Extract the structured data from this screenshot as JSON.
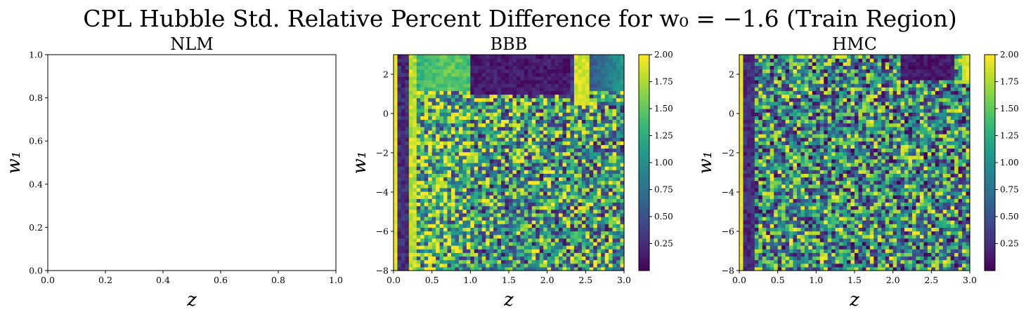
{
  "figure": {
    "suptitle": "CPL Hubble Std. Relative Percent Difference for w₀ = −1.6 (Train Region)"
  },
  "chart_data": [
    {
      "type": "line",
      "title": "NLM",
      "xlabel": "z",
      "ylabel": "w₁",
      "xlim": [
        0.0,
        1.0
      ],
      "ylim": [
        0.0,
        1.0
      ],
      "x_ticks": [
        "0.0",
        "0.2",
        "0.4",
        "0.6",
        "0.8",
        "1.0"
      ],
      "y_ticks": [
        "0.0",
        "0.2",
        "0.4",
        "0.6",
        "0.8",
        "1.0"
      ],
      "series": [],
      "grid": false
    },
    {
      "type": "heatmap",
      "title": "BBB",
      "xlabel": "z",
      "ylabel": "w₁",
      "xlim": [
        0.0,
        3.0
      ],
      "ylim": [
        -8,
        3
      ],
      "x_ticks": [
        "0.0",
        "0.5",
        "1.0",
        "1.5",
        "2.0",
        "2.5",
        "3.0"
      ],
      "y_ticks": [
        "−8",
        "−6",
        "−4",
        "−2",
        "0",
        "2"
      ],
      "colormap": "viridis",
      "color_range": [
        0.0,
        2.0
      ],
      "colorbar_ticks": [
        "0.25",
        "0.50",
        "0.75",
        "1.00",
        "1.25",
        "1.50",
        "1.75",
        "2.00"
      ],
      "grid_shape": {
        "nz": 60,
        "nw": 60
      },
      "features": {
        "bright_column_z": 0.0,
        "dark_band_z": [
          0.05,
          0.2
        ],
        "bright_band_z": 0.27,
        "dark_region": {
          "z": [
            1.0,
            2.3
          ],
          "w1_min": 1.0,
          "value": 0.1
        },
        "bright_ridge_z": 2.45,
        "noisy_background_mean": 1.1
      },
      "grid": false
    },
    {
      "type": "heatmap",
      "title": "HMC",
      "xlabel": "z",
      "ylabel": "w₁",
      "xlim": [
        0.0,
        3.0
      ],
      "ylim": [
        -8,
        3
      ],
      "x_ticks": [
        "0.0",
        "0.5",
        "1.0",
        "1.5",
        "2.0",
        "2.5",
        "3.0"
      ],
      "y_ticks": [
        "−8",
        "−6",
        "−4",
        "−2",
        "0",
        "2"
      ],
      "colormap": "viridis",
      "color_range": [
        0.0,
        2.0
      ],
      "colorbar_ticks": [
        "0.25",
        "0.50",
        "0.75",
        "1.00",
        "1.25",
        "1.50",
        "1.75",
        "2.00"
      ],
      "grid_shape": {
        "nz": 60,
        "nw": 60
      },
      "features": {
        "bright_column_z": 0.0,
        "dark_band_z": [
          0.05,
          0.2
        ],
        "dark_region": {
          "z": [
            2.1,
            2.8
          ],
          "w1_min": 1.8,
          "value": 0.1
        },
        "bright_right_edge_z": 2.9,
        "noisy_background_mean": 1.0
      },
      "grid": false
    }
  ]
}
